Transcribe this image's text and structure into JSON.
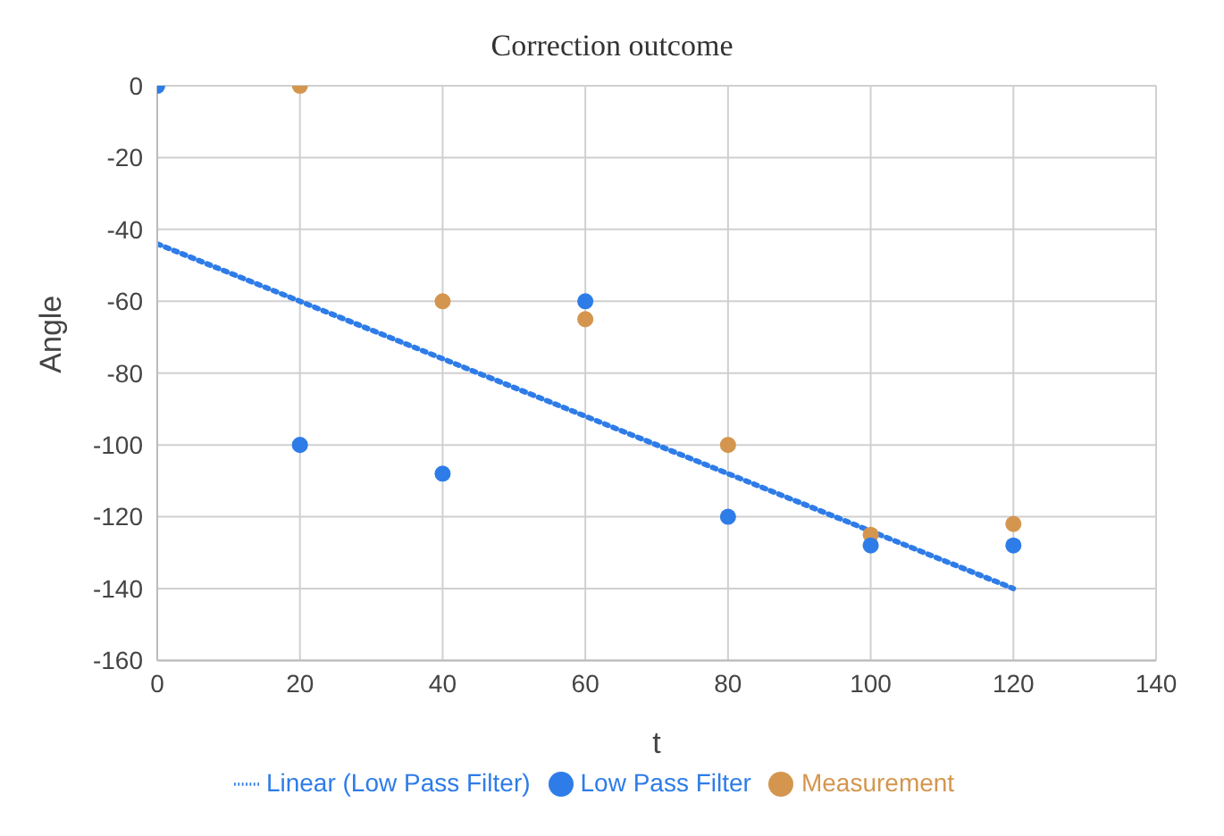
{
  "chart_data": {
    "type": "scatter",
    "title": "Correction outcome",
    "xlabel": "t",
    "ylabel": "Angle",
    "x": [
      0,
      20,
      40,
      60,
      80,
      100,
      120
    ],
    "series": [
      {
        "name": "Measurement",
        "color": "#d4964f",
        "x": [
          20,
          40,
          60,
          80,
          100,
          120
        ],
        "values": [
          0,
          -60,
          -65,
          -100,
          -125,
          -122
        ]
      },
      {
        "name": "Low Pass Filter",
        "color": "#2e7ce8",
        "values": [
          0,
          -100,
          -108,
          -60,
          -120,
          -128,
          -128
        ]
      },
      {
        "name": "Linear (Low Pass Filter)",
        "type": "line",
        "color": "#2e7ce8",
        "line_style": "dotted",
        "marker": "none",
        "x": [
          0,
          120
        ],
        "values": [
          -44,
          -140
        ]
      }
    ],
    "xlim": [
      0,
      140
    ],
    "xticks": [
      0,
      20,
      40,
      60,
      80,
      100,
      120,
      140
    ],
    "ylim": [
      -160,
      0
    ],
    "yticks": [
      -160,
      -140,
      -120,
      -100,
      -80,
      -60,
      -40,
      -20,
      0
    ],
    "grid": true,
    "legend": "bottom",
    "marker": "circle"
  }
}
